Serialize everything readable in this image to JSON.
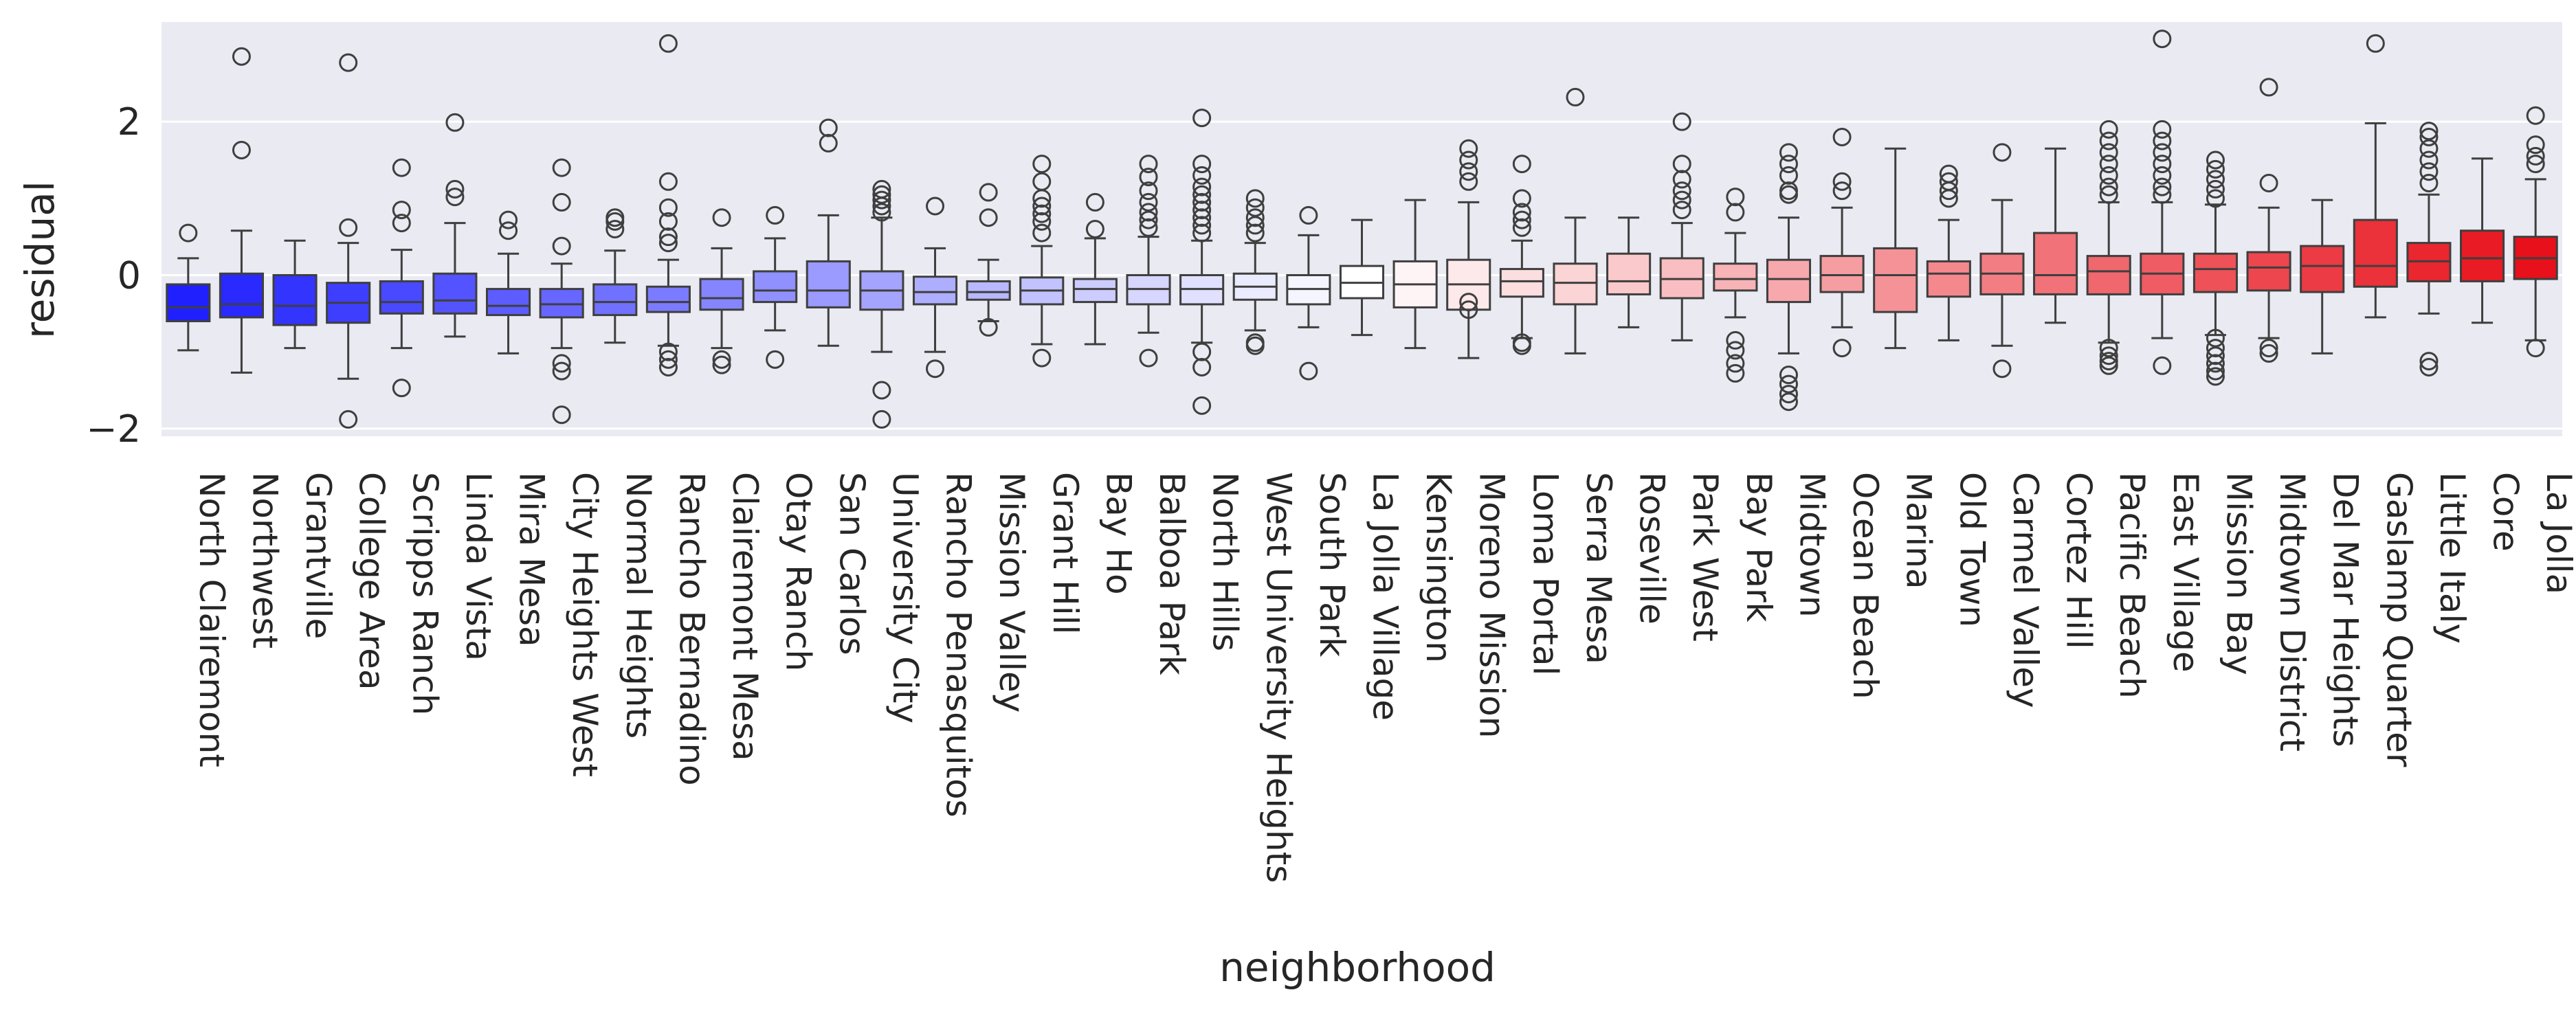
{
  "chart_data": {
    "type": "box",
    "xlabel": "neighborhood",
    "ylabel": "residual",
    "ylim": [
      -2.1,
      3.3
    ],
    "yticks": [
      -2,
      0,
      2
    ],
    "grid": true,
    "background_color": "#eaeaf2",
    "grid_color": "#ffffff",
    "color_low": "#2020ff",
    "color_mid": "#ffffff",
    "color_high": "#e8101a",
    "categories": [
      "North Clairemont",
      "Northwest",
      "Grantville",
      "College Area",
      "Scripps Ranch",
      "Linda Vista",
      "Mira Mesa",
      "City Heights West",
      "Normal Heights",
      "Rancho Bernadino",
      "Clairemont Mesa",
      "Otay Ranch",
      "San Carlos",
      "University City",
      "Rancho Penasquitos",
      "Mission Valley",
      "Grant Hill",
      "Bay Ho",
      "Balboa Park",
      "North Hills",
      "West University Heights",
      "South Park",
      "La Jolla Village",
      "Kensington",
      "Moreno Mission",
      "Loma Portal",
      "Serra Mesa",
      "Roseville",
      "Park West",
      "Bay Park",
      "Midtown",
      "Ocean Beach",
      "Marina",
      "Old Town",
      "Carmel Valley",
      "Cortez Hill",
      "Pacific Beach",
      "East Village",
      "Mission Bay",
      "Midtown District",
      "Del Mar Heights",
      "Gaslamp Quarter",
      "Little Italy",
      "Core",
      "La Jolla"
    ],
    "boxes": [
      {
        "whislo": -0.98,
        "q1": -0.6,
        "med": -0.42,
        "q3": -0.12,
        "whishi": 0.22,
        "fliers": [
          0.55
        ]
      },
      {
        "whislo": -1.27,
        "q1": -0.55,
        "med": -0.38,
        "q3": 0.02,
        "whishi": 0.58,
        "fliers": [
          1.63,
          2.85
        ]
      },
      {
        "whislo": -0.95,
        "q1": -0.65,
        "med": -0.4,
        "q3": 0.0,
        "whishi": 0.45,
        "fliers": []
      },
      {
        "whislo": -1.35,
        "q1": -0.62,
        "med": -0.36,
        "q3": -0.1,
        "whishi": 0.42,
        "fliers": [
          0.62,
          2.77,
          -1.88
        ]
      },
      {
        "whislo": -0.95,
        "q1": -0.5,
        "med": -0.35,
        "q3": -0.08,
        "whishi": 0.33,
        "fliers": [
          0.68,
          0.85,
          1.4,
          -1.47
        ]
      },
      {
        "whislo": -0.8,
        "q1": -0.5,
        "med": -0.33,
        "q3": 0.02,
        "whishi": 0.68,
        "fliers": [
          1.02,
          1.12,
          1.99
        ]
      },
      {
        "whislo": -1.02,
        "q1": -0.52,
        "med": -0.4,
        "q3": -0.18,
        "whishi": 0.28,
        "fliers": [
          0.58,
          0.72
        ]
      },
      {
        "whislo": -0.95,
        "q1": -0.55,
        "med": -0.38,
        "q3": -0.18,
        "whishi": 0.15,
        "fliers": [
          0.38,
          0.95,
          1.4,
          -1.15,
          -1.25,
          -1.82
        ]
      },
      {
        "whislo": -0.88,
        "q1": -0.52,
        "med": -0.35,
        "q3": -0.12,
        "whishi": 0.32,
        "fliers": [
          0.6,
          0.7,
          0.75
        ]
      },
      {
        "whislo": -0.92,
        "q1": -0.48,
        "med": -0.35,
        "q3": -0.15,
        "whishi": 0.2,
        "fliers": [
          0.42,
          0.5,
          0.7,
          0.88,
          1.22,
          3.02,
          -1.0,
          -1.1,
          -1.2
        ]
      },
      {
        "whislo": -0.95,
        "q1": -0.45,
        "med": -0.3,
        "q3": -0.05,
        "whishi": 0.35,
        "fliers": [
          0.75,
          -1.1,
          -1.17
        ]
      },
      {
        "whislo": -0.72,
        "q1": -0.35,
        "med": -0.2,
        "q3": 0.05,
        "whishi": 0.48,
        "fliers": [
          0.78,
          -1.1
        ]
      },
      {
        "whislo": -0.92,
        "q1": -0.42,
        "med": -0.2,
        "q3": 0.18,
        "whishi": 0.78,
        "fliers": [
          1.72,
          1.92
        ]
      },
      {
        "whislo": -1.0,
        "q1": -0.45,
        "med": -0.2,
        "q3": 0.05,
        "whishi": 0.75,
        "fliers": [
          0.82,
          0.9,
          0.98,
          1.05,
          1.12,
          -1.5,
          -1.88
        ]
      },
      {
        "whislo": -1.0,
        "q1": -0.38,
        "med": -0.22,
        "q3": -0.02,
        "whishi": 0.35,
        "fliers": [
          0.9,
          -1.22
        ]
      },
      {
        "whislo": -0.6,
        "q1": -0.32,
        "med": -0.22,
        "q3": -0.08,
        "whishi": 0.2,
        "fliers": [
          0.75,
          1.08,
          -0.68
        ]
      },
      {
        "whislo": -0.9,
        "q1": -0.38,
        "med": -0.2,
        "q3": -0.03,
        "whishi": 0.38,
        "fliers": [
          0.55,
          0.7,
          0.8,
          0.9,
          1.0,
          1.22,
          1.45,
          -1.08
        ]
      },
      {
        "whislo": -0.9,
        "q1": -0.35,
        "med": -0.18,
        "q3": -0.05,
        "whishi": 0.48,
        "fliers": [
          0.6,
          0.95
        ]
      },
      {
        "whislo": -0.75,
        "q1": -0.38,
        "med": -0.18,
        "q3": 0.0,
        "whishi": 0.5,
        "fliers": [
          0.62,
          0.72,
          0.82,
          0.95,
          1.1,
          1.28,
          1.45,
          -1.08
        ]
      },
      {
        "whislo": -0.88,
        "q1": -0.38,
        "med": -0.18,
        "q3": 0.0,
        "whishi": 0.45,
        "fliers": [
          0.55,
          0.65,
          0.75,
          0.85,
          0.95,
          1.05,
          1.15,
          1.3,
          1.45,
          2.05,
          -1.0,
          -1.2,
          -1.7
        ]
      },
      {
        "whislo": -0.72,
        "q1": -0.32,
        "med": -0.15,
        "q3": 0.02,
        "whishi": 0.42,
        "fliers": [
          0.55,
          0.65,
          0.75,
          0.88,
          1.0,
          -0.88,
          -0.92
        ]
      },
      {
        "whislo": -0.68,
        "q1": -0.38,
        "med": -0.18,
        "q3": 0.0,
        "whishi": 0.52,
        "fliers": [
          0.78,
          -1.25
        ]
      },
      {
        "whislo": -0.78,
        "q1": -0.3,
        "med": -0.1,
        "q3": 0.12,
        "whishi": 0.72,
        "fliers": []
      },
      {
        "whislo": -0.95,
        "q1": -0.42,
        "med": -0.12,
        "q3": 0.18,
        "whishi": 0.98,
        "fliers": []
      },
      {
        "whislo": -1.08,
        "q1": -0.45,
        "med": -0.12,
        "q3": 0.2,
        "whishi": 0.95,
        "fliers": [
          1.22,
          1.35,
          1.5,
          1.65,
          -0.35,
          -0.45
        ]
      },
      {
        "whislo": -0.82,
        "q1": -0.28,
        "med": -0.08,
        "q3": 0.08,
        "whishi": 0.45,
        "fliers": [
          0.62,
          0.72,
          0.82,
          1.0,
          1.45,
          -0.88,
          -0.92
        ]
      },
      {
        "whislo": -1.02,
        "q1": -0.38,
        "med": -0.1,
        "q3": 0.15,
        "whishi": 0.75,
        "fliers": [
          2.32
        ]
      },
      {
        "whislo": -0.68,
        "q1": -0.25,
        "med": -0.08,
        "q3": 0.28,
        "whishi": 0.75,
        "fliers": []
      },
      {
        "whislo": -0.85,
        "q1": -0.3,
        "med": -0.05,
        "q3": 0.22,
        "whishi": 0.68,
        "fliers": [
          0.85,
          0.98,
          1.1,
          1.25,
          1.45,
          2.0
        ]
      },
      {
        "whislo": -0.55,
        "q1": -0.2,
        "med": -0.05,
        "q3": 0.15,
        "whishi": 0.55,
        "fliers": [
          0.82,
          1.02,
          -0.85,
          -0.98,
          -1.15,
          -1.28
        ]
      },
      {
        "whislo": -1.02,
        "q1": -0.35,
        "med": -0.05,
        "q3": 0.2,
        "whishi": 0.75,
        "fliers": [
          1.05,
          1.1,
          1.3,
          1.45,
          1.6,
          -1.3,
          -1.42,
          -1.55,
          -1.65
        ]
      },
      {
        "whislo": -0.68,
        "q1": -0.22,
        "med": 0.0,
        "q3": 0.25,
        "whishi": 0.88,
        "fliers": [
          1.1,
          1.22,
          1.8,
          -0.95
        ]
      },
      {
        "whislo": -0.95,
        "q1": -0.48,
        "med": 0.0,
        "q3": 0.35,
        "whishi": 1.65,
        "fliers": []
      },
      {
        "whislo": -0.85,
        "q1": -0.28,
        "med": 0.02,
        "q3": 0.18,
        "whishi": 0.72,
        "fliers": [
          1.0,
          1.1,
          1.22,
          1.32
        ]
      },
      {
        "whislo": -0.92,
        "q1": -0.25,
        "med": 0.02,
        "q3": 0.28,
        "whishi": 0.98,
        "fliers": [
          1.6,
          -1.22
        ]
      },
      {
        "whislo": -0.62,
        "q1": -0.25,
        "med": 0.0,
        "q3": 0.55,
        "whishi": 1.65,
        "fliers": []
      },
      {
        "whislo": -0.88,
        "q1": -0.25,
        "med": 0.05,
        "q3": 0.25,
        "whishi": 0.95,
        "fliers": [
          1.05,
          1.15,
          1.3,
          1.45,
          1.6,
          1.75,
          1.9,
          -0.95,
          -1.05,
          -1.12,
          -1.18
        ]
      },
      {
        "whislo": -0.82,
        "q1": -0.25,
        "med": 0.02,
        "q3": 0.28,
        "whishi": 0.95,
        "fliers": [
          1.05,
          1.15,
          1.3,
          1.45,
          1.6,
          1.75,
          1.9,
          3.08,
          -1.18
        ]
      },
      {
        "whislo": -0.78,
        "q1": -0.22,
        "med": 0.08,
        "q3": 0.28,
        "whishi": 0.92,
        "fliers": [
          1.0,
          1.12,
          1.25,
          1.38,
          1.5,
          -0.82,
          -0.95,
          -1.05,
          -1.15,
          -1.25,
          -1.32
        ]
      },
      {
        "whislo": -0.82,
        "q1": -0.2,
        "med": 0.1,
        "q3": 0.3,
        "whishi": 0.88,
        "fliers": [
          1.2,
          2.45,
          -0.95,
          -1.02
        ]
      },
      {
        "whislo": -1.02,
        "q1": -0.22,
        "med": 0.12,
        "q3": 0.38,
        "whishi": 0.98,
        "fliers": []
      },
      {
        "whislo": -0.55,
        "q1": -0.15,
        "med": 0.12,
        "q3": 0.72,
        "whishi": 1.98,
        "fliers": [
          3.02
        ]
      },
      {
        "whislo": -0.5,
        "q1": -0.08,
        "med": 0.18,
        "q3": 0.42,
        "whishi": 1.05,
        "fliers": [
          1.2,
          1.35,
          1.5,
          1.65,
          1.8,
          1.88,
          -1.12,
          -1.2
        ]
      },
      {
        "whislo": -0.62,
        "q1": -0.08,
        "med": 0.22,
        "q3": 0.58,
        "whishi": 1.52,
        "fliers": []
      },
      {
        "whislo": -0.85,
        "q1": -0.05,
        "med": 0.22,
        "q3": 0.5,
        "whishi": 1.25,
        "fliers": [
          1.45,
          1.55,
          1.7,
          2.08,
          -0.95
        ]
      }
    ]
  }
}
